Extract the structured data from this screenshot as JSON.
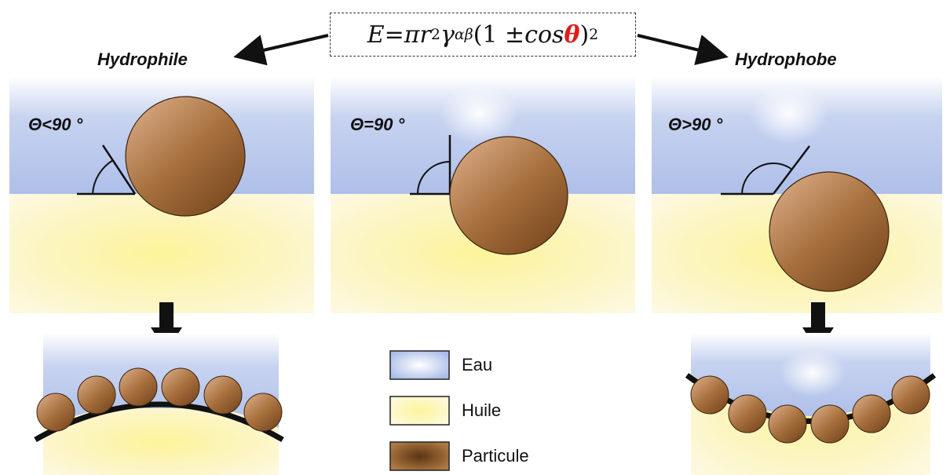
{
  "formula": {
    "E": "E",
    "eq": " = ",
    "pi": "π",
    "r": "r",
    "r_exp": "2",
    "gamma": "γ",
    "gamma_sub": "αβ",
    "paren_open": "(1 ± ",
    "cos": "cos",
    "theta": "θ",
    "paren_close": ")",
    "outer_exp": "2"
  },
  "labels": {
    "hydrophile": "Hydrophile",
    "hydrophobe": "Hydrophobe"
  },
  "angles": {
    "left": "Θ<90 °",
    "middle": "Θ=90 °",
    "right": "Θ>90 °"
  },
  "legend": {
    "items": [
      {
        "label": "Eau"
      },
      {
        "label": "Huile"
      },
      {
        "label": "Particule"
      }
    ]
  },
  "colors": {
    "water": "#b8c8ec",
    "oil": "#fdf6c0",
    "particle_light": "#c9966a",
    "particle_dark": "#8b5a2b",
    "accent_theta": "#e11b1b"
  }
}
